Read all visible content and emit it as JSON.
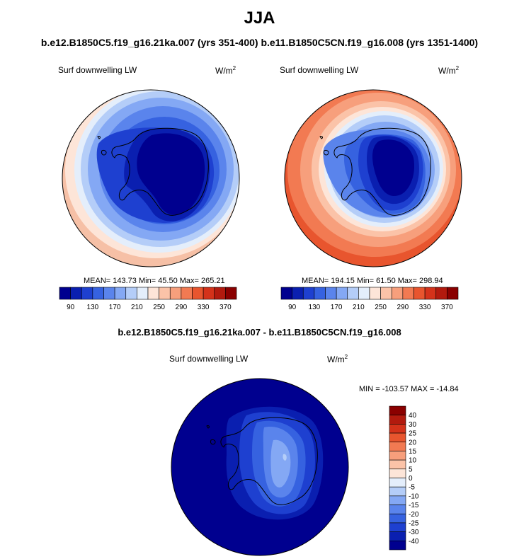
{
  "title": "JJA",
  "subtitle": "b.e12.B1850C5.f19_g16.21ka.007 (yrs 351-400) b.e11.B1850C5CN.f19_g16.008 (yrs 1351-1400)",
  "left_panel": {
    "variable": "Surf downwelling LW",
    "units": "W/m",
    "units_exp": "2",
    "stats": "MEAN= 143.73  Min=  45.50  Max= 265.21"
  },
  "right_panel": {
    "variable": "Surf downwelling LW",
    "units": "W/m",
    "units_exp": "2",
    "stats": "MEAN= 194.15  Min=  61.50  Max= 298.94"
  },
  "horizontal_colorbar": {
    "labels": [
      "90",
      "130",
      "170",
      "210",
      "250",
      "290",
      "330",
      "370"
    ],
    "colors": [
      "#00008f",
      "#0a1fb0",
      "#1e40d0",
      "#3662e0",
      "#5a84ec",
      "#84a8f4",
      "#b4cdf8",
      "#e4eefb",
      "#fde5d8",
      "#fbc3a8",
      "#f79f7c",
      "#f27a52",
      "#e8552e",
      "#d4321a",
      "#b21a0e",
      "#8a0000"
    ]
  },
  "diff_title": "b.e12.B1850C5.f19_g16.21ka.007 - b.e11.B1850C5CN.f19_g16.008",
  "diff_panel": {
    "variable": "Surf downwelling LW",
    "units": "W/m",
    "units_exp": "2",
    "stats": "MIN = -103.57 MAX = -14.84"
  },
  "vertical_colorbar": {
    "labels": [
      "40",
      "30",
      "25",
      "20",
      "15",
      "10",
      "5",
      "0",
      "-5",
      "-10",
      "-15",
      "-20",
      "-25",
      "-30",
      "-40"
    ],
    "colors": [
      "#8a0000",
      "#b21a0e",
      "#d4321a",
      "#e8552e",
      "#f27a52",
      "#f79f7c",
      "#fbc3a8",
      "#fde5d8",
      "#e4eefb",
      "#b4cdf8",
      "#84a8f4",
      "#5a84ec",
      "#3662e0",
      "#1e40d0",
      "#0a1fb0",
      "#00008f"
    ]
  }
}
